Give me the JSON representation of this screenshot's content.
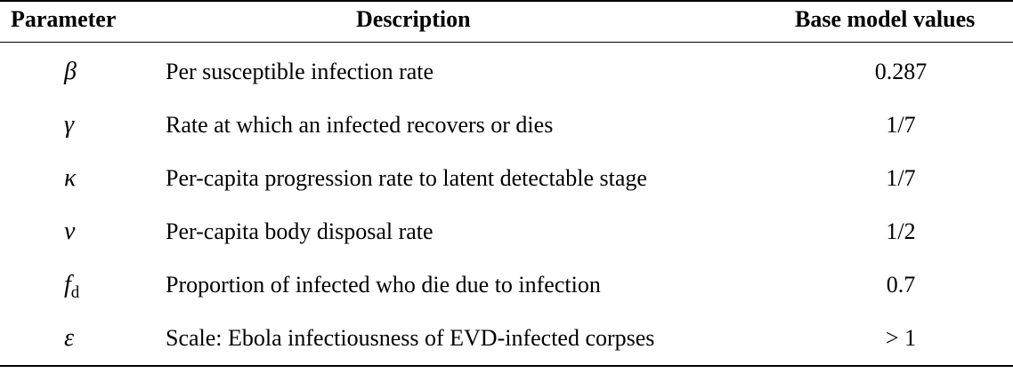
{
  "table": {
    "headers": {
      "parameter": "Parameter",
      "description": "Description",
      "value": "Base model values"
    },
    "rows": [
      {
        "symbol": "β",
        "subscript": "",
        "description": "Per susceptible infection rate",
        "value": "0.287"
      },
      {
        "symbol": "γ",
        "subscript": "",
        "description": "Rate at which an infected recovers or dies",
        "value": "1/7"
      },
      {
        "symbol": "κ",
        "subscript": "",
        "description": "Per-capita progression rate to latent detectable stage",
        "value": "1/7"
      },
      {
        "symbol": "ν",
        "subscript": "",
        "description": "Per-capita body disposal rate",
        "value": "1/2"
      },
      {
        "symbol": "f",
        "subscript": "d",
        "description": "Proportion of infected who die due to infection",
        "value": "0.7"
      },
      {
        "symbol": "ε",
        "subscript": "",
        "description": "Scale: Ebola infectiousness of EVD-infected corpses",
        "value": "> 1"
      }
    ]
  }
}
